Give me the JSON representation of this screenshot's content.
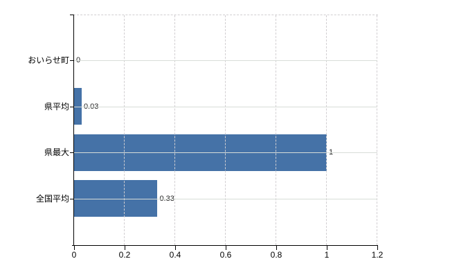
{
  "chart_data": {
    "type": "bar",
    "orientation": "horizontal",
    "categories": [
      "おいらせ町",
      "県平均",
      "県最大",
      "全国平均"
    ],
    "values": [
      0,
      0.03,
      1,
      0.33
    ],
    "value_labels": [
      "0",
      "0.03",
      "1",
      "0.33"
    ],
    "xticks": [
      0,
      0.2,
      0.4,
      0.6,
      0.8,
      1,
      1.2
    ],
    "xtick_labels": [
      "0",
      "0.2",
      "0.4",
      "0.6",
      "0.8",
      "1",
      "1.2"
    ],
    "xlim": [
      0,
      1.2
    ],
    "legend": "none",
    "grid": "on",
    "bar_color": "#4572a7",
    "axis_color": "#000000",
    "vertical_gridline_style": "dashed",
    "horizontal_gridline_style": "solid",
    "gridline_color": "#d6d6d6",
    "background_color": "#ffffff"
  }
}
